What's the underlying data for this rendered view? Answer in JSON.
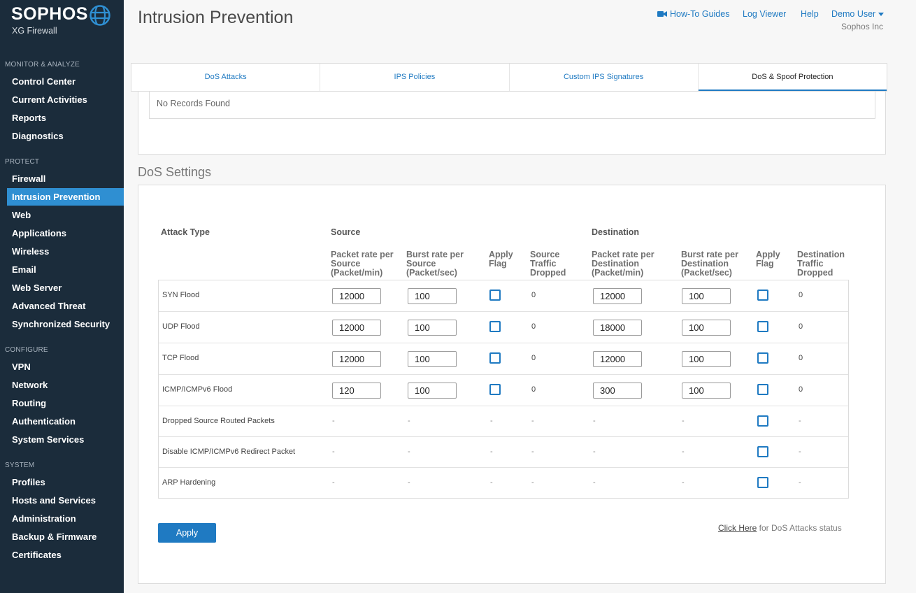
{
  "brand": {
    "name": "SOPHOS",
    "product": "XG Firewall"
  },
  "sidebar": {
    "sections": [
      {
        "title": "MONITOR & ANALYZE",
        "items": [
          "Control Center",
          "Current Activities",
          "Reports",
          "Diagnostics"
        ]
      },
      {
        "title": "PROTECT",
        "items": [
          "Firewall",
          "Intrusion Prevention",
          "Web",
          "Applications",
          "Wireless",
          "Email",
          "Web Server",
          "Advanced Threat",
          "Synchronized Security"
        ]
      },
      {
        "title": "CONFIGURE",
        "items": [
          "VPN",
          "Network",
          "Routing",
          "Authentication",
          "System Services"
        ]
      },
      {
        "title": "SYSTEM",
        "items": [
          "Profiles",
          "Hosts and Services",
          "Administration",
          "Backup & Firmware",
          "Certificates"
        ]
      }
    ],
    "active": "Intrusion Prevention"
  },
  "header": {
    "title": "Intrusion Prevention",
    "links": {
      "howto": "How-To Guides",
      "logviewer": "Log Viewer",
      "help": "Help",
      "user": "Demo User"
    },
    "company": "Sophos Inc"
  },
  "tabs": [
    {
      "label": "DoS Attacks",
      "active": false
    },
    {
      "label": "IPS Policies",
      "active": false
    },
    {
      "label": "Custom IPS Signatures",
      "active": false
    },
    {
      "label": "DoS & Spoof Protection",
      "active": true
    }
  ],
  "records": {
    "empty_text": "No Records Found"
  },
  "dos": {
    "title": "DoS Settings",
    "headers": {
      "attack_type": "Attack Type",
      "source": "Source",
      "destination": "Destination",
      "src_packet_rate": [
        "Packet rate per",
        "Source",
        "(Packet/min)"
      ],
      "src_burst_rate": [
        "Burst rate per",
        "Source",
        "(Packet/sec)"
      ],
      "src_apply_flag": [
        "Apply",
        "Flag"
      ],
      "src_dropped": [
        "Source",
        "Traffic",
        "Dropped"
      ],
      "dst_packet_rate": [
        "Packet rate per",
        "Destination",
        "(Packet/min)"
      ],
      "dst_burst_rate": [
        "Burst rate per",
        "Destination",
        "(Packet/sec)"
      ],
      "dst_apply_flag": [
        "Apply",
        "Flag"
      ],
      "dst_dropped": [
        "Destination",
        "Traffic",
        "Dropped"
      ]
    },
    "rows": [
      {
        "name": "SYN Flood",
        "src_rate": "12000",
        "src_burst": "100",
        "src_dropped": "0",
        "dst_rate": "12000",
        "dst_burst": "100",
        "dst_dropped": "0"
      },
      {
        "name": "UDP Flood",
        "src_rate": "12000",
        "src_burst": "100",
        "src_dropped": "0",
        "dst_rate": "18000",
        "dst_burst": "100",
        "dst_dropped": "0"
      },
      {
        "name": "TCP Flood",
        "src_rate": "12000",
        "src_burst": "100",
        "src_dropped": "0",
        "dst_rate": "12000",
        "dst_burst": "100",
        "dst_dropped": "0"
      },
      {
        "name": "ICMP/ICMPv6 Flood",
        "src_rate": "120",
        "src_burst": "100",
        "src_dropped": "0",
        "dst_rate": "300",
        "dst_burst": "100",
        "dst_dropped": "0"
      },
      {
        "name": "Dropped Source Routed Packets",
        "dash": "-"
      },
      {
        "name": "Disable ICMP/ICMPv6 Redirect Packet",
        "dash": "-"
      },
      {
        "name": "ARP Hardening",
        "dash": "-"
      }
    ],
    "apply_label": "Apply",
    "status_link": "Click Here",
    "status_suffix": " for DoS Attacks status"
  }
}
